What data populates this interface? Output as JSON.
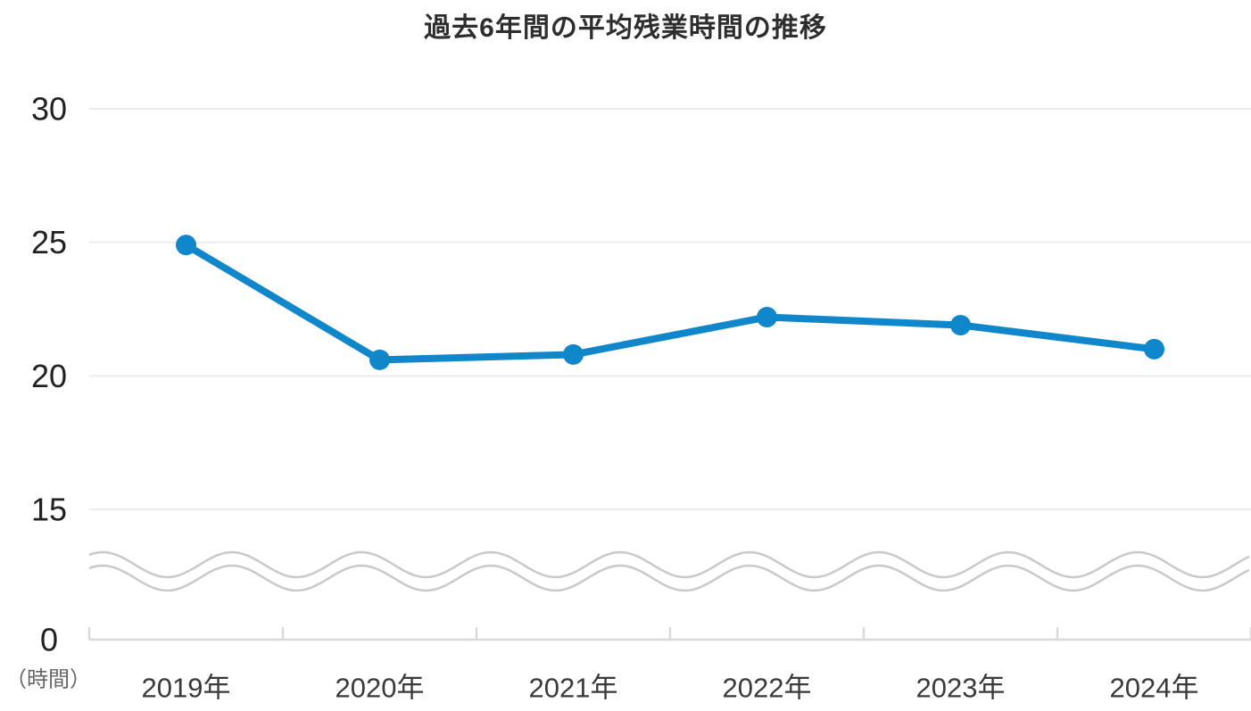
{
  "title": "過去6年間の平均残業時間の推移",
  "chart_data": {
    "type": "line",
    "title": "過去6年間の平均残業時間の推移",
    "categories": [
      "2019年",
      "2020年",
      "2021年",
      "2022年",
      "2023年",
      "2024年"
    ],
    "series": [
      {
        "name": "平均残業時間",
        "values": [
          24.9,
          20.6,
          20.8,
          22.2,
          21.9,
          21.0
        ]
      }
    ],
    "unit_label": "（時間）",
    "yticks": [
      0,
      15,
      20,
      25,
      30
    ],
    "ylim_display": [
      15,
      30
    ],
    "axis_break": true,
    "axis_break_between": [
      0,
      15
    ],
    "grid": "horizontal-only",
    "legend": "none",
    "colors": {
      "line": "#1086cb",
      "marker": "#1086cb",
      "gridline": "#ececec",
      "axis": "#d9d9d9",
      "break_wave": "#c9c9c9",
      "title_text": "#2e2e2e",
      "ytick_text": "#212121",
      "xtick_text": "#3a3a3a",
      "unit_text": "#666666"
    }
  }
}
